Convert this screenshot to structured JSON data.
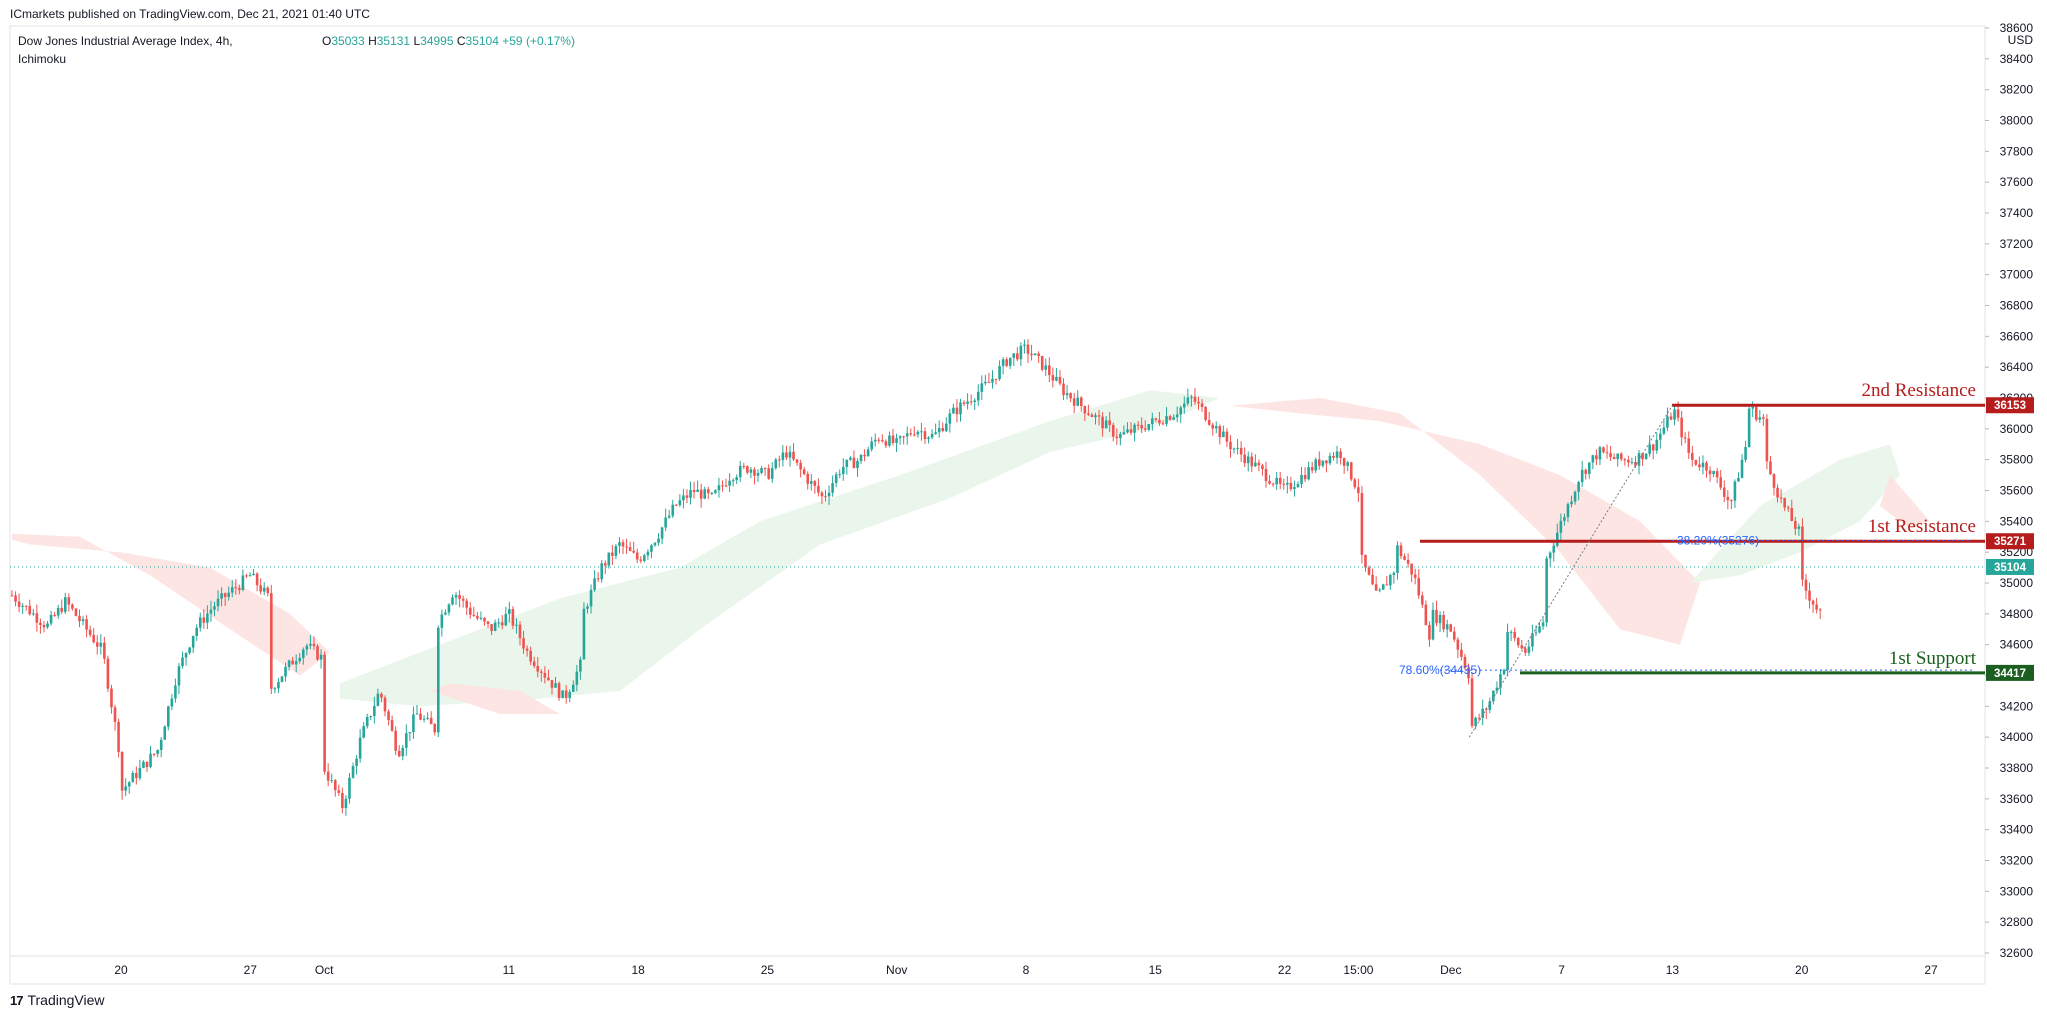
{
  "header": {
    "published": "ICmarkets published on TradingView.com, Dec 21, 2021 01:40 UTC",
    "symbol_line1": "Dow Jones Industrial Average Index, 4h,",
    "symbol_line2": "Ichimoku",
    "open_label": "O",
    "open": "35033",
    "high_label": "H",
    "high": "35131",
    "low_label": "L",
    "low": "34995",
    "close_label": "C",
    "close": "35104",
    "change": "+59 (+0.17%)"
  },
  "footer": {
    "brand": "TradingView",
    "logo": "17"
  },
  "colors": {
    "up": "#26a69a",
    "down": "#ef5350",
    "resistance": "#b71c1c",
    "support": "#1b5e20",
    "fib": "#2962ff",
    "cloud_bull": "#e8f5e9",
    "cloud_bear": "#fde2e0"
  },
  "chart_data": {
    "type": "candlestick",
    "title": "Dow Jones Industrial Average Index",
    "interval": "4h",
    "indicator": "Ichimoku",
    "currency_label": "USD",
    "ylim": [
      32500,
      38600
    ],
    "y_ticks": [
      "38600",
      "38400",
      "38200",
      "38000",
      "37800",
      "37600",
      "37400",
      "37200",
      "37000",
      "36800",
      "36600",
      "36400",
      "36200",
      "36000",
      "35800",
      "35600",
      "35400",
      "35200",
      "35000",
      "34800",
      "34600",
      "34400",
      "34200",
      "34000",
      "33800",
      "33600",
      "33400",
      "33200",
      "33000",
      "32800",
      "32600"
    ],
    "x_ticks": [
      {
        "label": "20",
        "date": "2021-09-20"
      },
      {
        "label": "27",
        "date": "2021-09-27"
      },
      {
        "label": "Oct",
        "date": "2021-10-01"
      },
      {
        "label": "11",
        "date": "2021-10-11"
      },
      {
        "label": "18",
        "date": "2021-10-18"
      },
      {
        "label": "25",
        "date": "2021-10-25"
      },
      {
        "label": "Nov",
        "date": "2021-11-01"
      },
      {
        "label": "8",
        "date": "2021-11-08"
      },
      {
        "label": "15",
        "date": "2021-11-15"
      },
      {
        "label": "22",
        "date": "2021-11-22"
      },
      {
        "label": "15:00",
        "date": "2021-11-26"
      },
      {
        "label": "Dec",
        "date": "2021-12-01"
      },
      {
        "label": "7",
        "date": "2021-12-07"
      },
      {
        "label": "13",
        "date": "2021-12-13"
      },
      {
        "label": "20",
        "date": "2021-12-20"
      },
      {
        "label": "27",
        "date": "2021-12-27"
      }
    ],
    "price_path": [
      [
        "2021-09-14",
        34930
      ],
      [
        "2021-09-16",
        34720
      ],
      [
        "2021-09-17",
        34880
      ],
      [
        "2021-09-19",
        34560
      ],
      [
        "2021-09-20",
        33850
      ],
      [
        "2021-09-20",
        33650
      ],
      [
        "2021-09-22",
        33920
      ],
      [
        "2021-09-23",
        34400
      ],
      [
        "2021-09-24",
        34700
      ],
      [
        "2021-09-25",
        34850
      ],
      [
        "2021-09-27",
        35050
      ],
      [
        "2021-09-28",
        34900
      ],
      [
        "2021-09-28",
        34300
      ],
      [
        "2021-09-29",
        34450
      ],
      [
        "2021-09-30",
        34600
      ],
      [
        "2021-10-01",
        34500
      ],
      [
        "2021-10-01",
        33800
      ],
      [
        "2021-10-02",
        33550
      ],
      [
        "2021-10-03",
        34000
      ],
      [
        "2021-10-04",
        34300
      ],
      [
        "2021-10-05",
        33900
      ],
      [
        "2021-10-06",
        34150
      ],
      [
        "2021-10-07",
        34050
      ],
      [
        "2021-10-07",
        34700
      ],
      [
        "2021-10-08",
        34950
      ],
      [
        "2021-10-09",
        34800
      ],
      [
        "2021-10-10",
        34700
      ],
      [
        "2021-10-11",
        34800
      ],
      [
        "2021-10-12",
        34550
      ],
      [
        "2021-10-13",
        34400
      ],
      [
        "2021-10-14",
        34250
      ],
      [
        "2021-10-15",
        34500
      ],
      [
        "2021-10-15",
        34800
      ],
      [
        "2021-10-16",
        35100
      ],
      [
        "2021-10-17",
        35250
      ],
      [
        "2021-10-18",
        35150
      ],
      [
        "2021-10-19",
        35300
      ],
      [
        "2021-10-20",
        35500
      ],
      [
        "2021-10-21",
        35600
      ],
      [
        "2021-10-22",
        35550
      ],
      [
        "2021-10-23",
        35700
      ],
      [
        "2021-10-24",
        35750
      ],
      [
        "2021-10-25",
        35700
      ],
      [
        "2021-10-26",
        35850
      ],
      [
        "2021-10-27",
        35700
      ],
      [
        "2021-10-28",
        35550
      ],
      [
        "2021-10-29",
        35750
      ],
      [
        "2021-10-30",
        35800
      ],
      [
        "2021-10-31",
        35950
      ],
      [
        "2021-11-01",
        35900
      ],
      [
        "2021-11-02",
        36000
      ],
      [
        "2021-11-03",
        35950
      ],
      [
        "2021-11-04",
        36100
      ],
      [
        "2021-11-05",
        36200
      ],
      [
        "2021-11-06",
        36300
      ],
      [
        "2021-11-07",
        36450
      ],
      [
        "2021-11-08",
        36520
      ],
      [
        "2021-11-09",
        36400
      ],
      [
        "2021-11-10",
        36250
      ],
      [
        "2021-11-11",
        36150
      ],
      [
        "2021-11-12",
        36050
      ],
      [
        "2021-11-13",
        35950
      ],
      [
        "2021-11-14",
        36000
      ],
      [
        "2021-11-15",
        36050
      ],
      [
        "2021-11-16",
        36100
      ],
      [
        "2021-11-17",
        36200
      ],
      [
        "2021-11-18",
        36050
      ],
      [
        "2021-11-19",
        35900
      ],
      [
        "2021-11-20",
        35800
      ],
      [
        "2021-11-21",
        35700
      ],
      [
        "2021-11-22",
        35600
      ],
      [
        "2021-11-23",
        35700
      ],
      [
        "2021-11-24",
        35800
      ],
      [
        "2021-11-25",
        35850
      ],
      [
        "2021-11-26",
        35600
      ],
      [
        "2021-11-26",
        35200
      ],
      [
        "2021-11-27",
        34900
      ],
      [
        "2021-11-28",
        35100
      ],
      [
        "2021-11-28",
        35250
      ],
      [
        "2021-11-29",
        35050
      ],
      [
        "2021-11-30",
        34600
      ],
      [
        "2021-11-30",
        34800
      ],
      [
        "2021-12-01",
        34700
      ],
      [
        "2021-12-02",
        34400
      ],
      [
        "2021-12-02",
        34050
      ],
      [
        "2021-12-03",
        34200
      ],
      [
        "2021-12-04",
        34500
      ],
      [
        "2021-12-04",
        34700
      ],
      [
        "2021-12-05",
        34550
      ],
      [
        "2021-12-06",
        34750
      ],
      [
        "2021-12-06",
        35100
      ],
      [
        "2021-12-07",
        35400
      ],
      [
        "2021-12-08",
        35700
      ],
      [
        "2021-12-09",
        35850
      ],
      [
        "2021-12-10",
        35800
      ],
      [
        "2021-12-11",
        35800
      ],
      [
        "2021-12-12",
        35900
      ],
      [
        "2021-12-13",
        36100
      ],
      [
        "2021-12-13",
        36150
      ],
      [
        "2021-12-14",
        35800
      ],
      [
        "2021-12-15",
        35750
      ],
      [
        "2021-12-16",
        35550
      ],
      [
        "2021-12-16",
        35450
      ],
      [
        "2021-12-17",
        35900
      ],
      [
        "2021-12-17",
        36150
      ],
      [
        "2021-12-18",
        36050
      ],
      [
        "2021-12-18",
        35800
      ],
      [
        "2021-12-19",
        35500
      ],
      [
        "2021-12-20",
        35300
      ],
      [
        "2021-12-20",
        35000
      ],
      [
        "2021-12-21",
        34800
      ],
      [
        "2021-12-21",
        34850
      ],
      [
        "2021-12-21",
        35104
      ]
    ],
    "levels": [
      {
        "name": "2nd Resistance",
        "value": 36153,
        "tag": "36153",
        "kind": "resistance"
      },
      {
        "name": "1st Resistance",
        "value": 35271,
        "tag": "35271",
        "kind": "resistance"
      },
      {
        "name": "1st Support",
        "value": 34417,
        "tag": "34417",
        "kind": "support"
      }
    ],
    "fib_labels": [
      {
        "text": "38.20%(35276)",
        "value": 35276
      },
      {
        "text": "78.60%(34435)",
        "value": 34435
      }
    ],
    "current_price": {
      "value": 35104,
      "tag": "35104"
    }
  }
}
